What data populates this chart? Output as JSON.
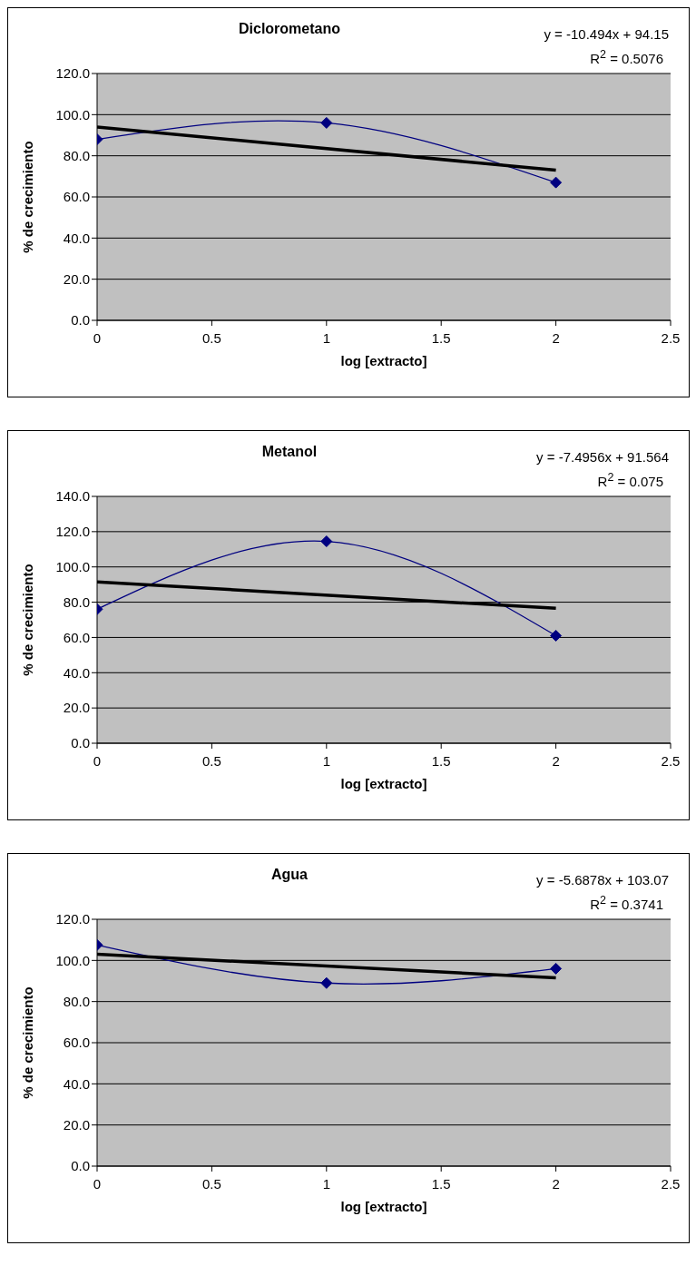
{
  "chart_data": [
    {
      "type": "line",
      "title": "Diclorometano",
      "xlabel": "log [extracto]",
      "ylabel": "% de crecimiento",
      "xlim": [
        0,
        2.5
      ],
      "xticks": [
        0,
        0.5,
        1,
        1.5,
        2,
        2.5
      ],
      "ylim": [
        0,
        120
      ],
      "yticks": [
        {
          "value": 0,
          "label": "0.0"
        },
        {
          "value": 20,
          "label": "20.0"
        },
        {
          "value": 40,
          "label": "40.0"
        },
        {
          "value": 60,
          "label": "60.0"
        },
        {
          "value": 80,
          "label": "80.0"
        },
        {
          "value": 100,
          "label": "100.0"
        },
        {
          "value": 120,
          "label": "120.0"
        }
      ],
      "grid": "y",
      "annotations": [
        "y = -10.494x + 94.15",
        "R$^{2}$ = 0.5076"
      ],
      "series": [
        {
          "color": "#000080",
          "x": [
            0,
            1,
            2
          ],
          "values": [
            88,
            96,
            67
          ],
          "marker": "diamond"
        },
        {
          "color": "#000000",
          "x": [
            0,
            2
          ],
          "values": [
            94,
            73
          ],
          "marker": "none"
        }
      ]
    },
    {
      "type": "line",
      "title": "Metanol",
      "xlabel": "log [extracto]",
      "ylabel": "% de crecimiento",
      "xlim": [
        0,
        2.5
      ],
      "xticks": [
        0,
        0.5,
        1,
        1.5,
        2,
        2.5
      ],
      "ylim": [
        0,
        140
      ],
      "yticks": [
        {
          "value": 0,
          "label": "0.0"
        },
        {
          "value": 20,
          "label": "20.0"
        },
        {
          "value": 40,
          "label": "40.0"
        },
        {
          "value": 60,
          "label": "60.0"
        },
        {
          "value": 80,
          "label": "80.0"
        },
        {
          "value": 100,
          "label": "100.0"
        },
        {
          "value": 120,
          "label": "120.0"
        },
        {
          "value": 140,
          "label": "140.0"
        }
      ],
      "grid": "y",
      "annotations": [
        "y = -7.4956x + 91.564",
        "R$^{2}$ = 0.075"
      ],
      "series": [
        {
          "color": "#000080",
          "x": [
            0,
            1,
            2
          ],
          "values": [
            76,
            114.5,
            61
          ],
          "marker": "diamond"
        },
        {
          "color": "#000000",
          "x": [
            0,
            2
          ],
          "values": [
            91.5,
            76.5
          ],
          "marker": "none"
        }
      ]
    },
    {
      "type": "line",
      "title": "Agua",
      "xlabel": "log [extracto]",
      "ylabel": "% de crecimiento",
      "xlim": [
        0,
        2.5
      ],
      "xticks": [
        0,
        0.5,
        1,
        1.5,
        2,
        2.5
      ],
      "ylim": [
        0,
        120
      ],
      "yticks": [
        {
          "value": 0,
          "label": "0.0"
        },
        {
          "value": 20,
          "label": "20.0"
        },
        {
          "value": 40,
          "label": "40.0"
        },
        {
          "value": 60,
          "label": "60.0"
        },
        {
          "value": 80,
          "label": "80.0"
        },
        {
          "value": 100,
          "label": "100.0"
        },
        {
          "value": 120,
          "label": "120.0"
        }
      ],
      "grid": "y",
      "annotations": [
        "y = -5.6878x + 103.07",
        "R$^{2}$ = 0.3741"
      ],
      "series": [
        {
          "color": "#000080",
          "x": [
            0,
            1,
            2
          ],
          "values": [
            107.5,
            89,
            96
          ],
          "marker": "diamond"
        },
        {
          "color": "#000000",
          "x": [
            0,
            2
          ],
          "values": [
            103,
            91.5
          ],
          "marker": "none"
        }
      ]
    }
  ]
}
